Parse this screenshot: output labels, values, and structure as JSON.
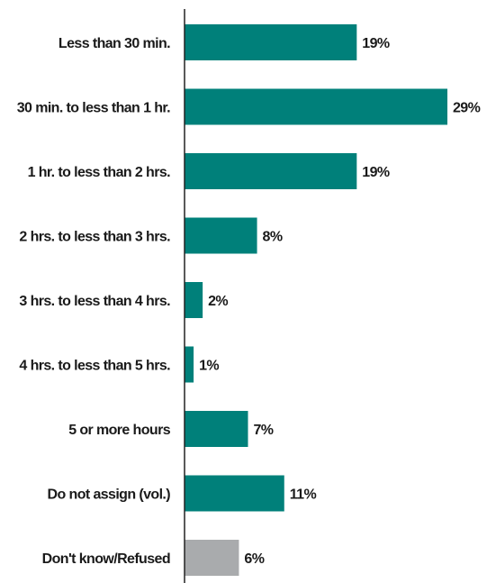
{
  "chart_data": {
    "type": "bar",
    "orientation": "horizontal",
    "categories": [
      "Less than 30 min.",
      "30 min. to less than 1 hr.",
      "1 hr. to less than 2 hrs.",
      "2 hrs. to less than 3 hrs.",
      "3 hrs. to less than 4 hrs.",
      "4 hrs. to less than 5 hrs.",
      "5 or more hours",
      "Do not assign (vol.)",
      "Don't know/Refused"
    ],
    "values": [
      19,
      29,
      19,
      8,
      2,
      1,
      7,
      11,
      6
    ],
    "value_labels": [
      "19%",
      "29%",
      "19%",
      "8%",
      "2%",
      "1%",
      "7%",
      "11%",
      "6%"
    ],
    "bar_colors": [
      "#00807a",
      "#00807a",
      "#00807a",
      "#00807a",
      "#00807a",
      "#00807a",
      "#00807a",
      "#00807a",
      "#a9abad"
    ],
    "title": "",
    "xlabel": "",
    "ylabel": "",
    "xlim": [
      0,
      29
    ],
    "grid": false,
    "legend": "none"
  },
  "colors": {
    "primary_bar": "#00807a",
    "secondary_bar": "#a9abad",
    "axis": "#222222"
  }
}
